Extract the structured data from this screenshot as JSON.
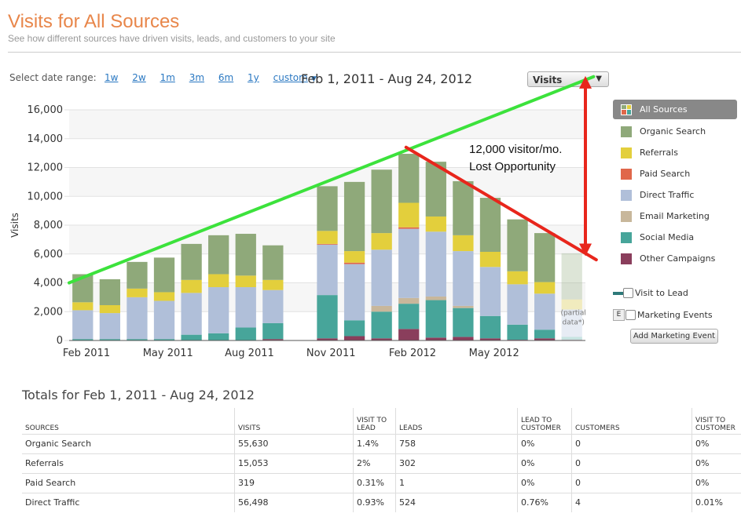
{
  "header": {
    "title": "Visits for All Sources",
    "subtitle": "See how different sources have driven visits, leads, and customers to your site"
  },
  "date_range": {
    "label": "Select date range:",
    "links": [
      "1w",
      "2w",
      "1m",
      "3m",
      "6m",
      "1y",
      "custom"
    ],
    "current": "Feb 1, 2011 - Aug 24, 2012"
  },
  "metric_select": {
    "value": "Visits"
  },
  "legend": {
    "items": [
      {
        "label": "All Sources",
        "color": "#888888",
        "active": true
      },
      {
        "label": "Organic Search",
        "color": "#8fa97a"
      },
      {
        "label": "Referrals",
        "color": "#e3cf3c"
      },
      {
        "label": "Paid Search",
        "color": "#e0674a"
      },
      {
        "label": "Direct Traffic",
        "color": "#b0bfd9"
      },
      {
        "label": "Email Marketing",
        "color": "#c8b79b"
      },
      {
        "label": "Social Media",
        "color": "#47a59a"
      },
      {
        "label": "Other Campaigns",
        "color": "#8a3e5c"
      }
    ],
    "visit_to_lead": "Visit to Lead",
    "marketing_events": "Marketing Events",
    "events_icon": "E",
    "add_event": "Add Marketing Event"
  },
  "annotation": {
    "line1": "12,000 visitor/mo.",
    "line2": "Lost Opportunity"
  },
  "chart_data": {
    "type": "bar",
    "stacked": true,
    "ylabel": "Visits",
    "ylim": [
      0,
      16000
    ],
    "yticks": [
      0,
      2000,
      4000,
      6000,
      8000,
      10000,
      12000,
      14000,
      16000
    ],
    "ytick_labels": [
      "0",
      "2,000",
      "4,000",
      "6,000",
      "8,000",
      "10,000",
      "12,000",
      "14,000",
      "16,000"
    ],
    "xtick_labels": [
      "Feb 2011",
      "May 2011",
      "Aug 2011",
      "Nov 2011",
      "Feb 2012",
      "May 2012"
    ],
    "xtick_indices": [
      0,
      3,
      6,
      9,
      12,
      15
    ],
    "partial_label": "(partial data*)",
    "categories": [
      "Feb 2011",
      "Mar 2011",
      "Apr 2011",
      "May 2011",
      "Jun 2011",
      "Jul 2011",
      "Aug 2011",
      "Sep 2011",
      "Oct 2011",
      "Nov 2011",
      "Dec 2011",
      "Jan 2012",
      "Feb 2012",
      "Mar 2012",
      "Apr 2012",
      "May 2012",
      "Jun 2012",
      "Jul 2012",
      "Aug 2012"
    ],
    "partial_index": 18,
    "series": [
      {
        "name": "Other Campaigns",
        "color": "#8a3e5c",
        "values": [
          0,
          0,
          0,
          0,
          0,
          0,
          0,
          100,
          0,
          150,
          300,
          150,
          800,
          200,
          250,
          150,
          50,
          150,
          50
        ]
      },
      {
        "name": "Social Media",
        "color": "#47a59a",
        "values": [
          100,
          100,
          100,
          100,
          400,
          500,
          900,
          1100,
          0,
          3000,
          1100,
          1850,
          1750,
          2600,
          2000,
          1550,
          1050,
          600,
          200
        ]
      },
      {
        "name": "Email Marketing",
        "color": "#c8b79b",
        "values": [
          0,
          0,
          0,
          0,
          0,
          0,
          0,
          0,
          0,
          0,
          0,
          400,
          400,
          250,
          150,
          0,
          0,
          0,
          0
        ]
      },
      {
        "name": "Direct Traffic",
        "color": "#b0bfd9",
        "values": [
          2000,
          1800,
          2900,
          2650,
          2900,
          3200,
          2800,
          2300,
          0,
          3500,
          3900,
          3900,
          4800,
          4500,
          3800,
          3400,
          2800,
          2500,
          1900
        ]
      },
      {
        "name": "Paid Search",
        "color": "#e0674a",
        "values": [
          0,
          0,
          0,
          0,
          0,
          0,
          0,
          0,
          0,
          50,
          100,
          0,
          100,
          0,
          0,
          0,
          0,
          0,
          0
        ]
      },
      {
        "name": "Referrals",
        "color": "#e3cf3c",
        "values": [
          550,
          550,
          600,
          600,
          900,
          900,
          800,
          700,
          0,
          900,
          800,
          1150,
          1700,
          1050,
          1100,
          1050,
          900,
          800,
          700
        ]
      },
      {
        "name": "Organic Search",
        "color": "#8fa97a",
        "values": [
          1950,
          1800,
          1850,
          2400,
          2500,
          2700,
          2900,
          2400,
          0,
          3100,
          4800,
          4400,
          3400,
          3800,
          3750,
          3750,
          3600,
          3400,
          3200
        ]
      }
    ],
    "trend_lines": [
      {
        "color": "#3ce23c",
        "from": [
          -0.5,
          4000
        ],
        "to": [
          18.8,
          18300
        ]
      },
      {
        "color": "#e8261c",
        "from": [
          11.9,
          13400
        ],
        "to": [
          18.9,
          5600
        ]
      }
    ],
    "gap_arrow": {
      "color": "#e8261c",
      "x": 18.5,
      "from": 6200,
      "to": 18000
    }
  },
  "totals": {
    "title": "Totals for Feb 1, 2011 - Aug 24, 2012",
    "columns": [
      "SOURCES",
      "VISITS",
      "VISIT TO LEAD",
      "LEADS",
      "LEAD TO CUSTOMER",
      "CUSTOMERS",
      "VISIT TO CUSTOMER"
    ],
    "rows": [
      [
        "Organic Search",
        "55,630",
        "1.4%",
        "758",
        "0%",
        "0",
        "0%"
      ],
      [
        "Referrals",
        "15,053",
        "2%",
        "302",
        "0%",
        "0",
        "0%"
      ],
      [
        "Paid Search",
        "319",
        "0.31%",
        "1",
        "0%",
        "0",
        "0%"
      ],
      [
        "Direct Traffic",
        "56,498",
        "0.93%",
        "524",
        "0.76%",
        "4",
        "0.01%"
      ]
    ]
  }
}
